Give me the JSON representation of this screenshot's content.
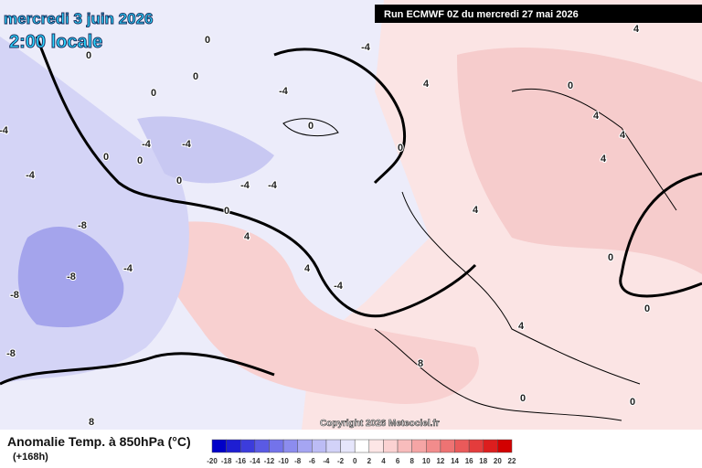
{
  "header": {
    "date": "mercredi 3 juin 2026",
    "time": "2:00 locale",
    "run": "Run ECMWF 0Z du mercredi 27 mai 2026"
  },
  "copyright": "Copyright 2026 Meteociel.fr",
  "legend": {
    "title": "Anomalie Temp. à 850hPa (°C)",
    "lead": "(+168h)"
  },
  "colorbar": {
    "ticks": [
      -20,
      -18,
      -16,
      -14,
      -12,
      -10,
      -8,
      -6,
      -4,
      -2,
      0,
      2,
      4,
      6,
      8,
      10,
      12,
      14,
      16,
      18,
      20,
      22
    ],
    "colors": [
      "#0000c8",
      "#1e1ed2",
      "#3c3cdc",
      "#5a5ae4",
      "#7373ea",
      "#8c8cee",
      "#a5a5f2",
      "#bcbcf5",
      "#d2d2f8",
      "#e6e6fb",
      "#ffffff",
      "#fde6e6",
      "#fbd2d2",
      "#f8bcbc",
      "#f5a5a5",
      "#f28c8c",
      "#ee7373",
      "#ea5a5a",
      "#e43c3c",
      "#dc1e1e",
      "#d20000"
    ]
  },
  "contour_labels": [
    "0",
    "0",
    "0",
    "0",
    "-4",
    "-4",
    "-4",
    "-4",
    "-4",
    "-4",
    "0",
    "0",
    "0",
    "-4",
    "-4",
    "0",
    "0",
    "4",
    "4",
    "0",
    "4",
    "4",
    "4",
    "0",
    "4",
    "-8",
    "-8",
    "-8",
    "-4",
    "4",
    "-4",
    "4",
    "-8",
    "8",
    "0",
    "0",
    "0",
    "0",
    "8",
    "4"
  ]
}
